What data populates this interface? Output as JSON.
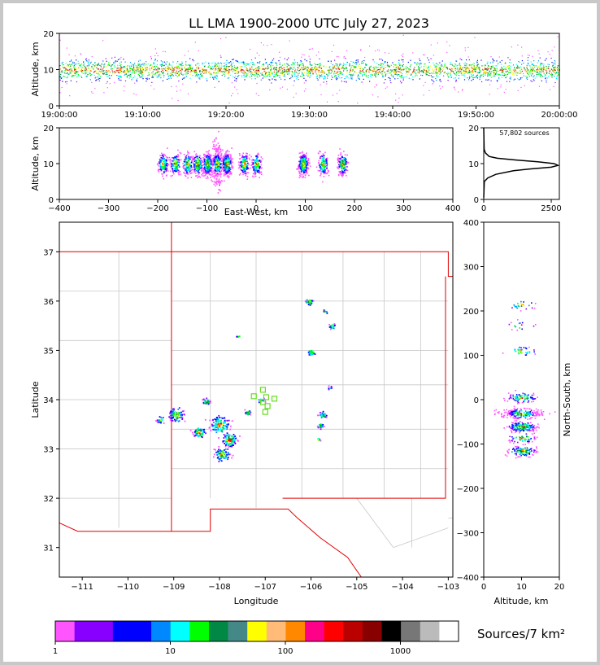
{
  "figure": {
    "title": "LL LMA 1900-2000 UTC July 27, 2023",
    "colorbar_label": "Sources/7 km²"
  },
  "chart_data": [
    {
      "id": "time-altitude",
      "type": "scatter",
      "ylabel": "Altitude, km",
      "xlabel": "",
      "x_ticks": [
        "19:00:00",
        "19:10:00",
        "19:20:00",
        "19:30:00",
        "19:40:00",
        "19:50:00",
        "20:00:00"
      ],
      "xlim": [
        "19:00:00",
        "20:00:00"
      ],
      "ylim": [
        0,
        20
      ],
      "y_ticks": [
        0,
        10,
        20
      ],
      "core_altitude_km": 10
    },
    {
      "id": "east-west-altitude",
      "type": "heatmap",
      "xlabel": "East-West, km",
      "ylabel": "Altitude, km",
      "xlim": [
        -400,
        400
      ],
      "ylim": [
        0,
        20
      ],
      "x_ticks": [
        -400,
        -300,
        -200,
        -100,
        0,
        100,
        200,
        300,
        400
      ],
      "y_ticks": [
        0,
        10,
        20
      ],
      "clusters_x_km": [
        -190,
        -165,
        -140,
        -120,
        -100,
        -80,
        -60,
        -25,
        0,
        95,
        135,
        175
      ]
    },
    {
      "id": "altitude-histogram",
      "type": "line",
      "annotation": "57,802 sources",
      "xlim": [
        0,
        2800
      ],
      "ylim": [
        0,
        20
      ],
      "x_ticks": [
        0,
        2500
      ],
      "y_ticks": [
        0,
        10,
        20
      ],
      "profile": [
        [
          0.5,
          0
        ],
        [
          5,
          20
        ],
        [
          6,
          150
        ],
        [
          7,
          450
        ],
        [
          8,
          1100
        ],
        [
          8.5,
          1700
        ],
        [
          9,
          2500
        ],
        [
          9.5,
          2750
        ],
        [
          10,
          2600
        ],
        [
          10.5,
          2000
        ],
        [
          11,
          1200
        ],
        [
          11.5,
          500
        ],
        [
          12,
          200
        ],
        [
          13,
          60
        ],
        [
          14,
          15
        ],
        [
          20,
          0
        ]
      ]
    },
    {
      "id": "plan-view-map",
      "type": "scatter",
      "xlabel": "Longitude",
      "ylabel": "Latitude",
      "xlim": [
        -111.5,
        -102.9
      ],
      "ylim": [
        30.4,
        37.6
      ],
      "x_ticks": [
        -111,
        -110,
        -109,
        -108,
        -107,
        -106,
        -105,
        -104,
        -103
      ],
      "y_ticks": [
        31,
        32,
        33,
        34,
        35,
        36,
        37
      ],
      "station_markers": [
        [
          -107.05,
          34.2
        ],
        [
          -106.98,
          34.05
        ],
        [
          -107.25,
          34.07
        ],
        [
          -107.05,
          33.95
        ],
        [
          -106.95,
          33.87
        ],
        [
          -106.8,
          34.02
        ],
        [
          -107.0,
          33.75
        ]
      ]
    },
    {
      "id": "altitude-north-south",
      "type": "heatmap",
      "xlabel": "Altitude, km",
      "ylabel": "North-South, km",
      "xlim": [
        0,
        20
      ],
      "ylim": [
        -400,
        400
      ],
      "x_ticks": [
        0,
        10,
        20
      ],
      "y_ticks": [
        -400,
        -300,
        -200,
        -100,
        0,
        100,
        200,
        300,
        400
      ]
    }
  ],
  "colorbar": {
    "colors": [
      "#ff55ff",
      "#8800ff",
      "#8800ff",
      "#0000ff",
      "#0000ff",
      "#0088ff",
      "#00ffff",
      "#00ff00",
      "#008844",
      "#448888",
      "#ffff00",
      "#ffbb77",
      "#ff8800",
      "#ff0088",
      "#ff0000",
      "#bb0000",
      "#880000",
      "#000000",
      "#777777",
      "#bbbbbb",
      "#ffffff"
    ],
    "tick_labels": [
      "1",
      "10",
      "100",
      "1000"
    ]
  }
}
